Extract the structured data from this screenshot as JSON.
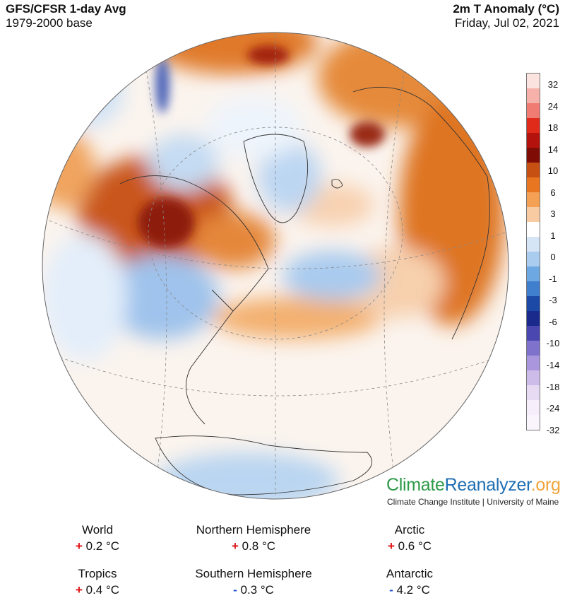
{
  "header": {
    "title": "GFS/CFSR 1-day Avg",
    "base": "1979-2000 base",
    "variable": "2m T Anomaly (°C)",
    "date": "Friday, Jul 02, 2021"
  },
  "legend": {
    "ticks": [
      "32",
      "24",
      "18",
      "14",
      "10",
      "6",
      "3",
      "1",
      "0",
      "-1",
      "-3",
      "-6",
      "-10",
      "-14",
      "-18",
      "-24",
      "-32"
    ],
    "colors": [
      "#fbe3df",
      "#f6b1ab",
      "#ef7b72",
      "#e02a1a",
      "#b3130c",
      "#7f0d06",
      "#c55012",
      "#e8751f",
      "#f4a055",
      "#f9cba2",
      "#ffffff",
      "#d5e5f6",
      "#a9ccef",
      "#6ea8e3",
      "#3f7fcd",
      "#1c49a6",
      "#1a2a8c",
      "#4a48b0",
      "#7f72cc",
      "#a996dc",
      "#cdbbe9",
      "#e7dbf3",
      "#f6eefa",
      "#faf4fc"
    ]
  },
  "brand": {
    "part1": "Climate",
    "part2": "Reanalyzer",
    "part3": ".org",
    "subtitle": "Climate Change Institute | University of Maine"
  },
  "stats": {
    "world": {
      "label": "World",
      "sign": "+",
      "value": "0.2 °C"
    },
    "nh": {
      "label": "Northern Hemisphere",
      "sign": "+",
      "value": "0.8 °C"
    },
    "arctic": {
      "label": "Arctic",
      "sign": "+",
      "value": "0.6 °C"
    },
    "tropics": {
      "label": "Tropics",
      "sign": "+",
      "value": "0.4 °C"
    },
    "sh": {
      "label": "Southern Hemisphere",
      "sign": "-",
      "value": "0.3 °C"
    },
    "antarctic": {
      "label": "Antarctic",
      "sign": "-",
      "value": "4.2 °C"
    }
  }
}
